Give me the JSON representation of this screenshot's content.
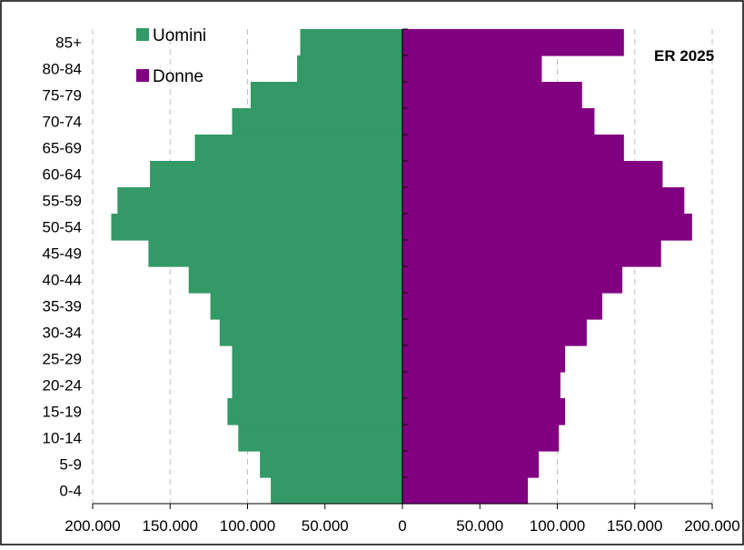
{
  "chart_data": {
    "type": "bar",
    "orientation": "horizontal-diverging",
    "title": "ER 2025",
    "categories": [
      "0-4",
      "5-9",
      "10-14",
      "15-19",
      "20-24",
      "25-29",
      "30-34",
      "35-39",
      "40-44",
      "45-49",
      "50-54",
      "55-59",
      "60-64",
      "65-69",
      "70-74",
      "75-79",
      "80-84",
      "85+"
    ],
    "series": [
      {
        "name": "Uomini",
        "color": "#339966",
        "side": "left",
        "values": [
          85000,
          92000,
          106000,
          113000,
          110000,
          110000,
          118000,
          124000,
          138000,
          164000,
          188000,
          184000,
          163000,
          134000,
          110000,
          98000,
          68000,
          66000
        ]
      },
      {
        "name": "Donne",
        "color": "#800080",
        "side": "right",
        "values": [
          81000,
          88000,
          101000,
          105000,
          102000,
          105000,
          119000,
          129000,
          142000,
          167000,
          187000,
          182000,
          168000,
          143000,
          124000,
          116000,
          90000,
          143000
        ]
      }
    ],
    "x_ticks": [
      "200.000",
      "150.000",
      "100.000",
      "50.000",
      "0",
      "50.000",
      "100.000",
      "150.000",
      "200.000"
    ],
    "xlim": [
      -200000,
      200000
    ],
    "grid": "vertical-dashed",
    "legend_position": "top-left"
  }
}
